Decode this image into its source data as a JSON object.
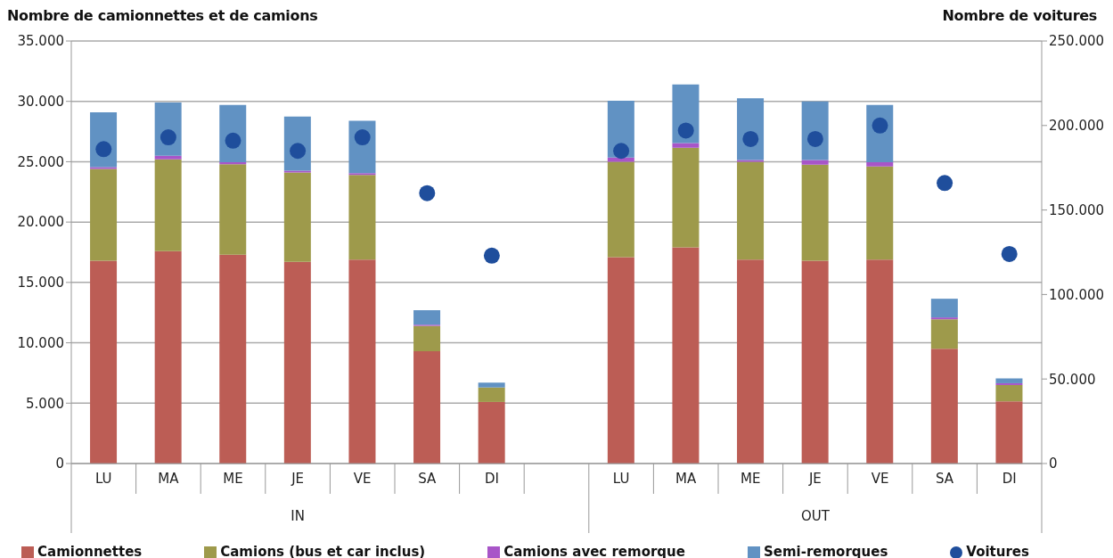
{
  "chart_data": {
    "type": "bar",
    "stacked": true,
    "ylabel": "Nombre de camionnettes et de camions",
    "y2label": "Nombre de voitures",
    "categories": [
      "LU",
      "MA",
      "ME",
      "JE",
      "VE",
      "SA",
      "DI",
      null,
      "LU",
      "MA",
      "ME",
      "JE",
      "VE",
      "SA",
      "DI"
    ],
    "annotations": [
      "IN",
      "OUT"
    ],
    "series": [
      {
        "name": "Camionnettes",
        "color": "#bc5d55",
        "values": [
          16800,
          17600,
          17300,
          16700,
          16900,
          9300,
          5100,
          null,
          17100,
          17900,
          16900,
          16800,
          16900,
          9500,
          5150
        ]
      },
      {
        "name": "Camions (bus et car inclus)",
        "color": "#9e9a4b",
        "values": [
          7600,
          7600,
          7500,
          7400,
          7000,
          2100,
          1200,
          null,
          7900,
          8250,
          8100,
          7950,
          7700,
          2450,
          1350
        ]
      },
      {
        "name": "Camions avec remorque",
        "color": "#a855c8",
        "values": [
          150,
          300,
          150,
          150,
          150,
          100,
          0,
          null,
          350,
          400,
          150,
          400,
          350,
          150,
          150
        ]
      },
      {
        "name": "Semi-remorques",
        "color": "#6192c3",
        "values": [
          4550,
          4400,
          4750,
          4500,
          4350,
          1200,
          400,
          null,
          4700,
          4850,
          5100,
          4850,
          4750,
          1550,
          400
        ]
      },
      {
        "name": "Voitures",
        "type": "scatter",
        "axis": "y2",
        "marker": "circle",
        "color": "#1f4e9c",
        "values": [
          186000,
          193000,
          191000,
          185000,
          193000,
          160000,
          123000,
          null,
          185000,
          197000,
          192000,
          192000,
          200000,
          166000,
          124000
        ]
      }
    ],
    "ylim": [
      0,
      35000
    ],
    "yticks": [
      {
        "value": 0,
        "label": "0"
      },
      {
        "value": 5000,
        "label": "5.000"
      },
      {
        "value": 10000,
        "label": "10.000"
      },
      {
        "value": 15000,
        "label": "15.000"
      },
      {
        "value": 20000,
        "label": "20.000"
      },
      {
        "value": 25000,
        "label": "25.000"
      },
      {
        "value": 30000,
        "label": "30.000"
      },
      {
        "value": 35000,
        "label": "35.000"
      }
    ],
    "y2lim": [
      0,
      250000
    ],
    "y2ticks": [
      {
        "value": 0,
        "label": "0"
      },
      {
        "value": 50000,
        "label": "50.000"
      },
      {
        "value": 100000,
        "label": "100.000"
      },
      {
        "value": 150000,
        "label": "150.000"
      },
      {
        "value": 200000,
        "label": "200.000"
      },
      {
        "value": 250000,
        "label": "250.000"
      }
    ],
    "grid": "y",
    "legend": "bottom"
  }
}
